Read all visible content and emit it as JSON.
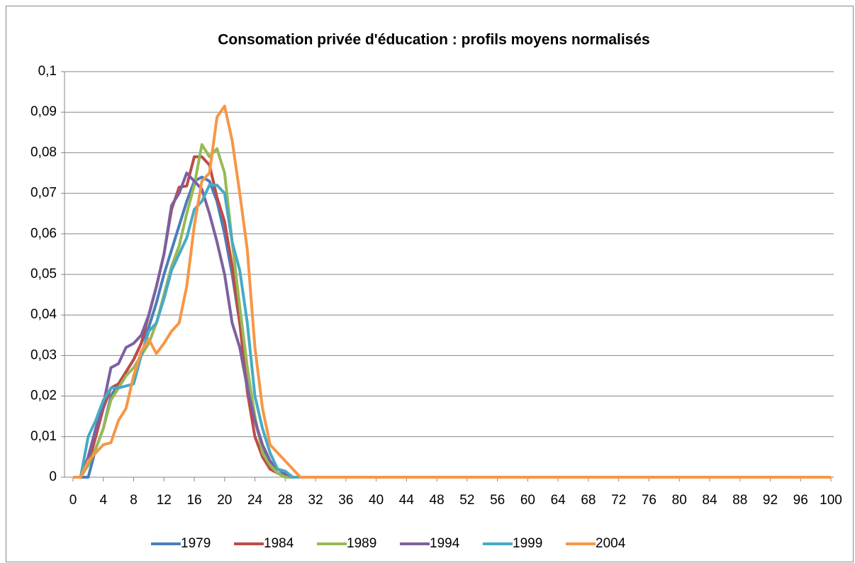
{
  "chart_data": {
    "type": "line",
    "title": "Consomation privée d'éducation : profils moyens normalisés",
    "x": [
      0,
      1,
      2,
      3,
      4,
      5,
      6,
      7,
      8,
      9,
      10,
      11,
      12,
      13,
      14,
      15,
      16,
      17,
      18,
      19,
      20,
      21,
      22,
      23,
      24,
      25,
      26,
      27,
      28,
      29,
      30,
      31,
      32,
      33,
      34,
      35,
      36,
      37,
      38,
      39,
      40,
      41,
      42,
      43,
      44,
      45,
      46,
      47,
      48,
      49,
      50,
      51,
      52,
      53,
      54,
      55,
      56,
      57,
      58,
      59,
      60,
      61,
      62,
      63,
      64,
      65,
      66,
      67,
      68,
      69,
      70,
      71,
      72,
      73,
      74,
      75,
      76,
      77,
      78,
      79,
      80,
      81,
      82,
      83,
      84,
      85,
      86,
      87,
      88,
      89,
      90,
      91,
      92,
      93,
      94,
      95,
      96,
      97,
      98,
      99,
      100
    ],
    "xlim": [
      0,
      100
    ],
    "xticks": [
      0,
      4,
      8,
      12,
      16,
      20,
      24,
      28,
      32,
      36,
      40,
      44,
      48,
      52,
      56,
      60,
      64,
      68,
      72,
      76,
      80,
      84,
      88,
      92,
      96,
      100
    ],
    "ylim": [
      0,
      0.1
    ],
    "yticks": [
      0,
      {
        "value": 0.01,
        "label": "0,01"
      },
      {
        "value": 0.02,
        "label": "0,02"
      },
      {
        "value": 0.03,
        "label": "0,03"
      },
      {
        "value": 0.04,
        "label": "0,04"
      },
      {
        "value": 0.05,
        "label": "0,05"
      },
      {
        "value": 0.06,
        "label": "0,06"
      },
      {
        "value": 0.07,
        "label": "0,07"
      },
      {
        "value": 0.08,
        "label": "0,08"
      },
      {
        "value": 0.09,
        "label": "0,09"
      },
      {
        "value": 0.1,
        "label": "0,1"
      }
    ],
    "grid": true,
    "legend": "bottom",
    "series": [
      {
        "name": "1979",
        "color": "#4a7ebb",
        "values": [
          0,
          0,
          0,
          0.007,
          0.012,
          0.02,
          0.023,
          0.026,
          0.029,
          0.033,
          0.037,
          0.043,
          0.05,
          0.056,
          0.062,
          0.068,
          0.073,
          0.074,
          0.073,
          0.068,
          0.06,
          0.05,
          0.038,
          0.025,
          0.014,
          0.007,
          0.003,
          0.001,
          0.0005,
          0,
          0,
          0,
          0,
          0,
          0,
          0,
          0,
          0,
          0,
          0,
          0,
          0,
          0,
          0,
          0,
          0,
          0,
          0,
          0,
          0,
          0,
          0,
          0,
          0,
          0,
          0,
          0,
          0,
          0,
          0,
          0,
          0,
          0,
          0,
          0,
          0,
          0,
          0,
          0,
          0,
          0,
          0,
          0,
          0,
          0,
          0,
          0,
          0,
          0,
          0,
          0,
          0,
          0,
          0,
          0,
          0,
          0,
          0,
          0,
          0,
          0,
          0,
          0,
          0,
          0,
          0,
          0,
          0,
          0,
          0,
          0
        ]
      },
      {
        "name": "1984",
        "color": "#be4b48",
        "values": [
          0,
          0,
          0.003,
          0.01,
          0.017,
          0.022,
          0.023,
          0.026,
          0.029,
          0.033,
          0.04,
          0.047,
          0.055,
          0.066,
          0.0715,
          0.0718,
          0.079,
          0.079,
          0.077,
          0.069,
          0.063,
          0.052,
          0.038,
          0.021,
          0.01,
          0.005,
          0.002,
          0.001,
          0,
          0,
          0,
          0,
          0,
          0,
          0,
          0,
          0,
          0,
          0,
          0,
          0,
          0,
          0,
          0,
          0,
          0,
          0,
          0,
          0,
          0,
          0,
          0,
          0,
          0,
          0,
          0,
          0,
          0,
          0,
          0,
          0,
          0,
          0,
          0,
          0,
          0,
          0,
          0,
          0,
          0,
          0,
          0,
          0,
          0,
          0,
          0,
          0,
          0,
          0,
          0,
          0,
          0,
          0,
          0,
          0,
          0,
          0,
          0,
          0,
          0,
          0,
          0,
          0,
          0,
          0,
          0,
          0,
          0,
          0,
          0,
          0
        ]
      },
      {
        "name": "1989",
        "color": "#98b954",
        "values": [
          0,
          0,
          0.003,
          0.007,
          0.012,
          0.019,
          0.022,
          0.025,
          0.027,
          0.03,
          0.033,
          0.038,
          0.045,
          0.052,
          0.057,
          0.065,
          0.072,
          0.082,
          0.079,
          0.081,
          0.075,
          0.058,
          0.042,
          0.027,
          0.015,
          0.006,
          0.003,
          0.001,
          0,
          0,
          0,
          0,
          0,
          0,
          0,
          0,
          0,
          0,
          0,
          0,
          0,
          0,
          0,
          0,
          0,
          0,
          0,
          0,
          0,
          0,
          0,
          0,
          0,
          0,
          0,
          0,
          0,
          0,
          0,
          0,
          0,
          0,
          0,
          0,
          0,
          0,
          0,
          0,
          0,
          0,
          0,
          0,
          0,
          0,
          0,
          0,
          0,
          0,
          0,
          0,
          0,
          0,
          0,
          0,
          0,
          0,
          0,
          0,
          0,
          0,
          0,
          0,
          0,
          0,
          0,
          0,
          0,
          0,
          0,
          0,
          0
        ]
      },
      {
        "name": "1994",
        "color": "#7d60a0",
        "values": [
          0,
          0,
          0.005,
          0.012,
          0.018,
          0.027,
          0.028,
          0.032,
          0.033,
          0.035,
          0.04,
          0.047,
          0.055,
          0.067,
          0.07,
          0.075,
          0.073,
          0.071,
          0.065,
          0.058,
          0.05,
          0.038,
          0.032,
          0.022,
          0.014,
          0.008,
          0.004,
          0.002,
          0.001,
          0,
          0,
          0,
          0,
          0,
          0,
          0,
          0,
          0,
          0,
          0,
          0,
          0,
          0,
          0,
          0,
          0,
          0,
          0,
          0,
          0,
          0,
          0,
          0,
          0,
          0,
          0,
          0,
          0,
          0,
          0,
          0,
          0,
          0,
          0,
          0,
          0,
          0,
          0,
          0,
          0,
          0,
          0,
          0,
          0,
          0,
          0,
          0,
          0,
          0,
          0,
          0,
          0,
          0,
          0,
          0,
          0,
          0,
          0,
          0,
          0,
          0,
          0,
          0,
          0,
          0,
          0,
          0,
          0,
          0,
          0,
          0
        ]
      },
      {
        "name": "1999",
        "color": "#46aac5",
        "values": [
          0,
          0,
          0.01,
          0.014,
          0.019,
          0.022,
          0.022,
          0.0225,
          0.023,
          0.03,
          0.036,
          0.038,
          0.044,
          0.051,
          0.055,
          0.059,
          0.066,
          0.068,
          0.072,
          0.072,
          0.07,
          0.058,
          0.051,
          0.038,
          0.02,
          0.012,
          0.006,
          0.002,
          0.0015,
          0,
          0,
          0,
          0,
          0,
          0,
          0,
          0,
          0,
          0,
          0,
          0,
          0,
          0,
          0,
          0,
          0,
          0,
          0,
          0,
          0,
          0,
          0,
          0,
          0,
          0,
          0,
          0,
          0,
          0,
          0,
          0,
          0,
          0,
          0,
          0,
          0,
          0,
          0,
          0,
          0,
          0,
          0,
          0,
          0,
          0,
          0,
          0,
          0,
          0,
          0,
          0,
          0,
          0,
          0,
          0,
          0,
          0,
          0,
          0,
          0,
          0,
          0,
          0,
          0,
          0,
          0,
          0,
          0,
          0,
          0,
          0
        ]
      },
      {
        "name": "2004",
        "color": "#f79646",
        "values": [
          0,
          0,
          0.004,
          0.006,
          0.008,
          0.0085,
          0.014,
          0.017,
          0.025,
          0.031,
          0.034,
          0.0305,
          0.033,
          0.036,
          0.038,
          0.047,
          0.062,
          0.073,
          0.075,
          0.0888,
          0.0915,
          0.083,
          0.07,
          0.056,
          0.032,
          0.017,
          0.008,
          0.006,
          0.004,
          0.002,
          0,
          0,
          0,
          0,
          0,
          0,
          0,
          0,
          0,
          0,
          0,
          0,
          0,
          0,
          0,
          0,
          0,
          0,
          0,
          0,
          0,
          0,
          0,
          0,
          0,
          0,
          0,
          0,
          0,
          0,
          0,
          0,
          0,
          0,
          0,
          0,
          0,
          0,
          0,
          0,
          0,
          0,
          0,
          0,
          0,
          0,
          0,
          0,
          0,
          0,
          0,
          0,
          0,
          0,
          0,
          0,
          0,
          0,
          0,
          0,
          0,
          0,
          0,
          0,
          0,
          0,
          0,
          0,
          0,
          0,
          0
        ]
      }
    ]
  }
}
